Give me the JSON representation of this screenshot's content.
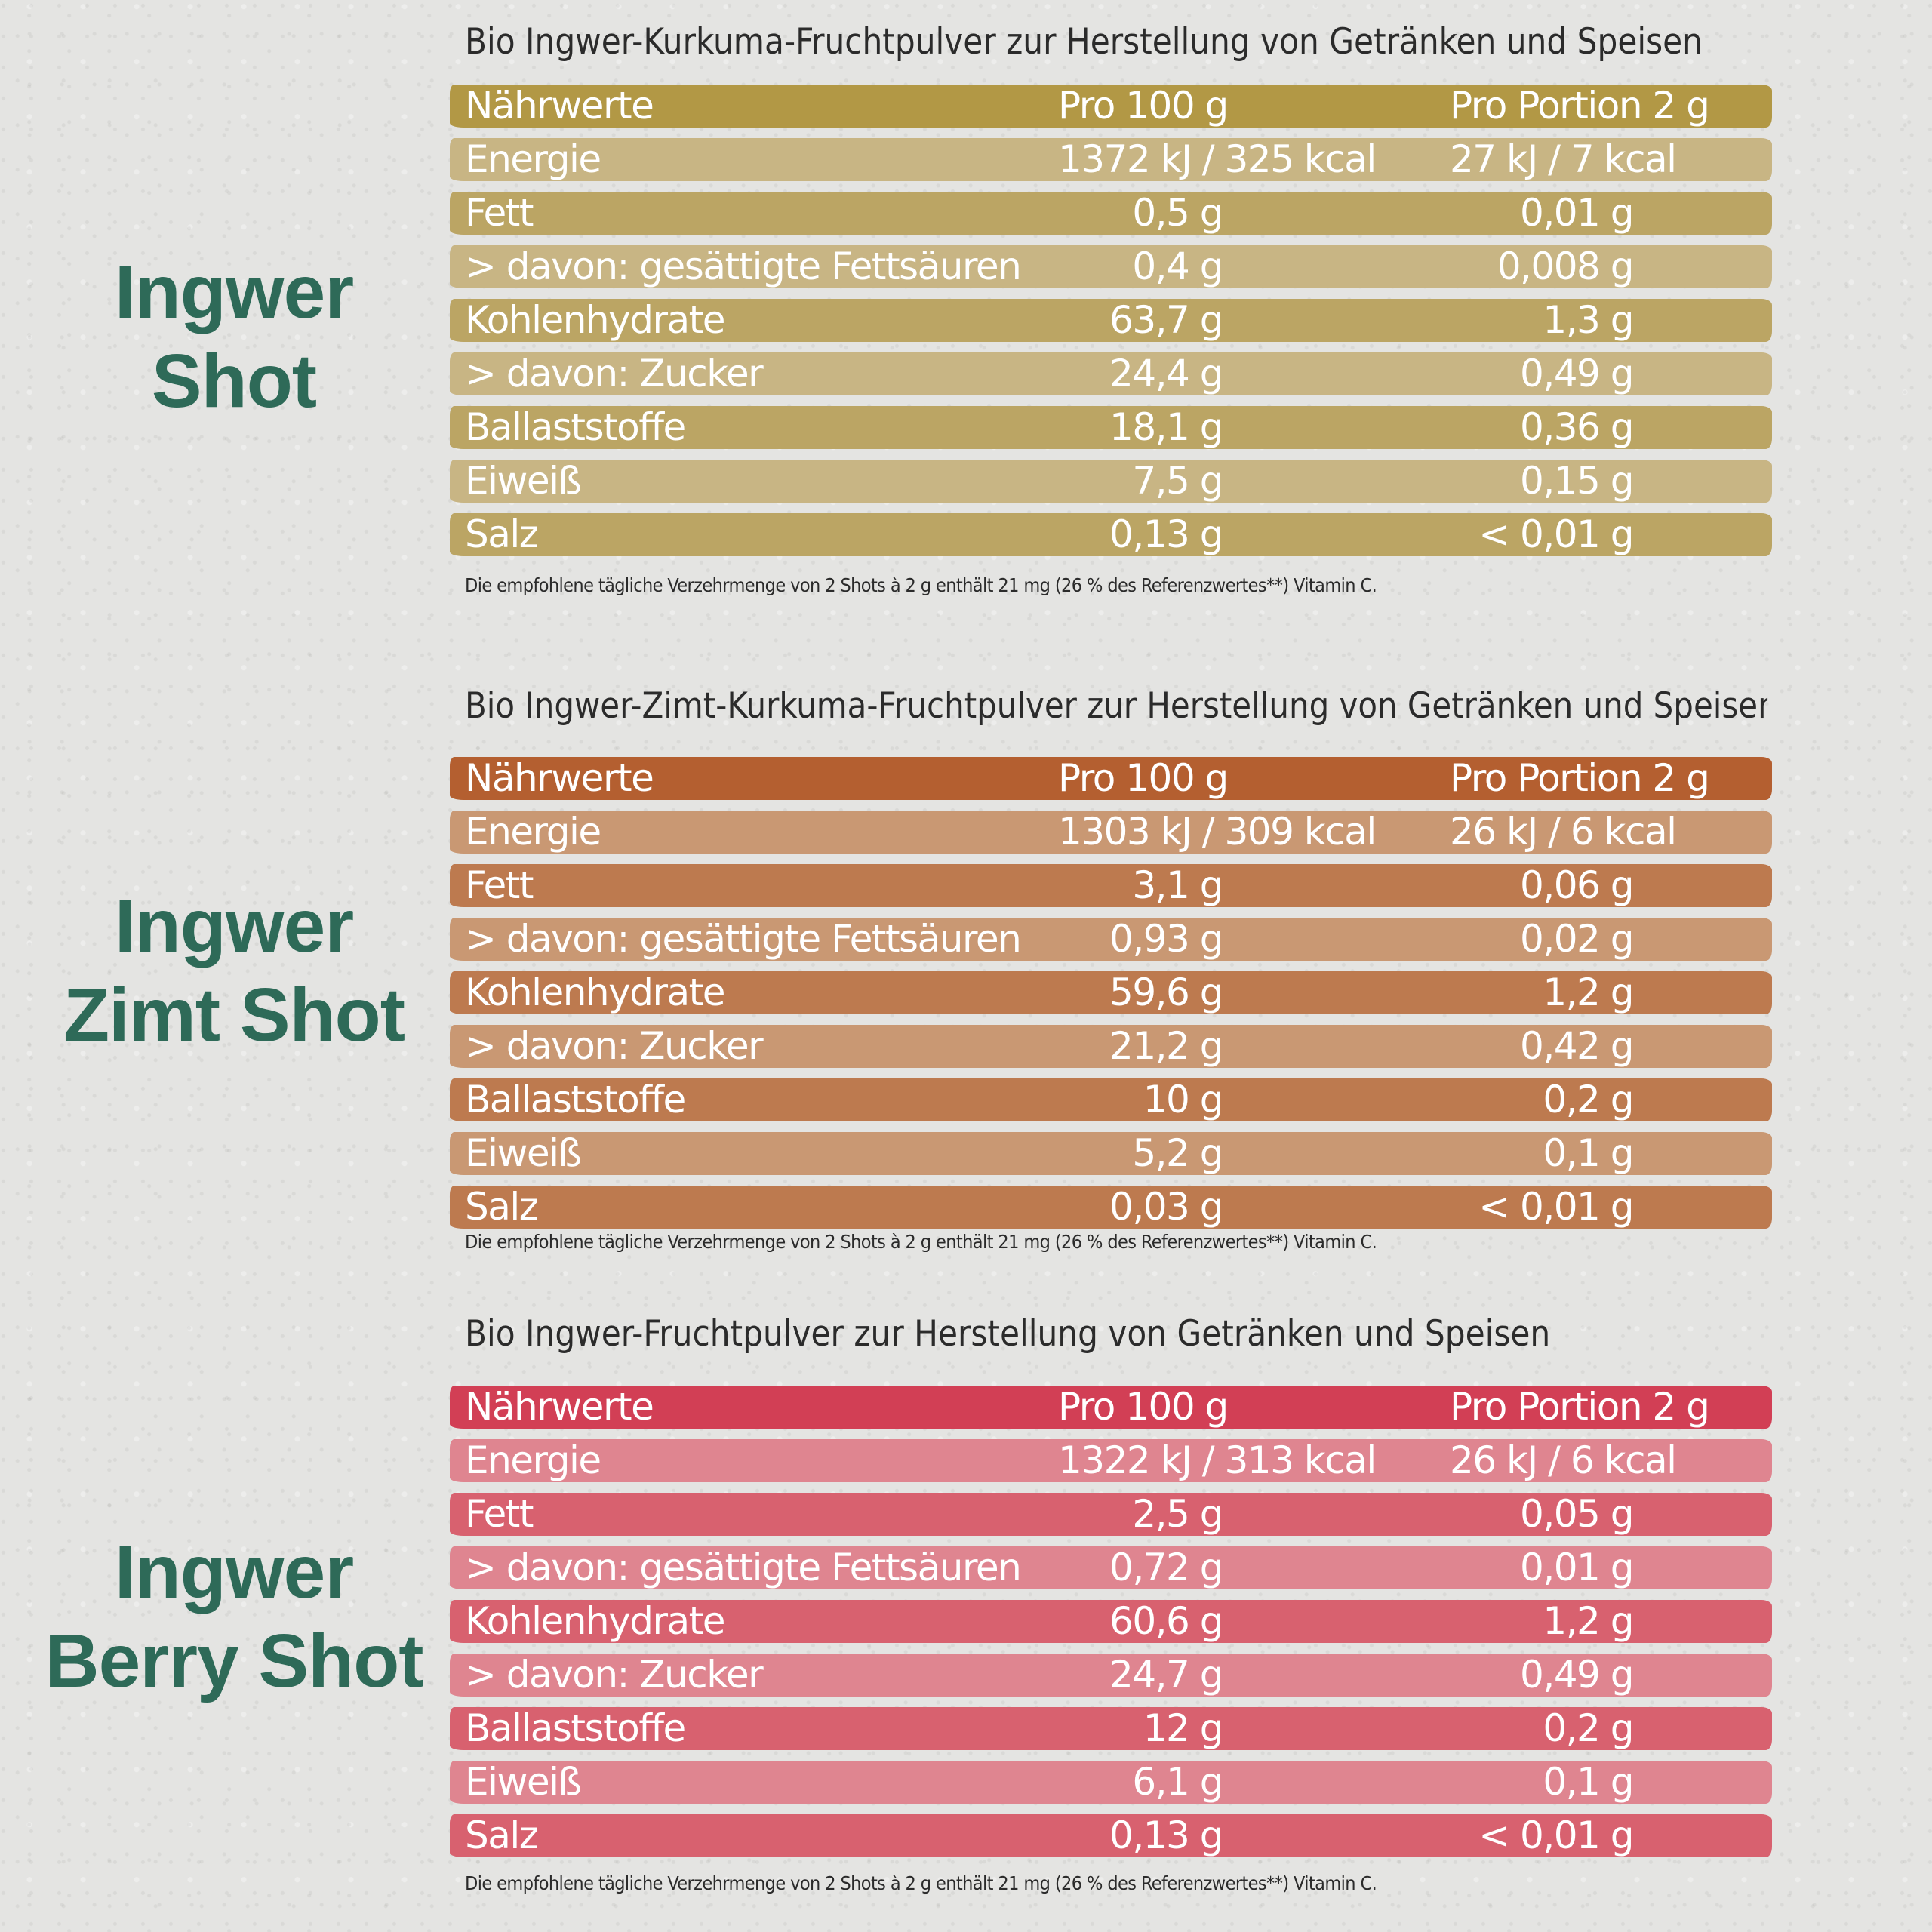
{
  "products": [
    {
      "name_lines": [
        "Ingwer",
        "Shot"
      ],
      "title": "Bio Ingwer-Kurkuma-Fruchtpulver zur Herstellung von Getränken und Speisen",
      "colors": {
        "header": "#b29845",
        "row_dark": "#bba564",
        "row_light": "#c8b584"
      },
      "header": {
        "name": "Nährwerte",
        "per100": "Pro 100 g",
        "portion": "Pro Portion 2 g"
      },
      "rows": [
        {
          "name": "Energie",
          "per100": "1372 kJ / 325 kcal",
          "portion": "27 kJ / 7 kcal"
        },
        {
          "name": "Fett",
          "per100": "0,5 g",
          "portion": "0,01 g"
        },
        {
          "name": "> davon: gesättigte Fettsäuren",
          "per100": "0,4 g",
          "portion": "0,008 g"
        },
        {
          "name": "Kohlenhydrate",
          "per100": "63,7 g",
          "portion": "1,3 g"
        },
        {
          "name": "> davon: Zucker",
          "per100": "24,4 g",
          "portion": "0,49 g"
        },
        {
          "name": "Ballaststoffe",
          "per100": "18,1 g",
          "portion": "0,36 g"
        },
        {
          "name": "Eiweiß",
          "per100": "7,5 g",
          "portion": "0,15 g"
        },
        {
          "name": "Salz",
          "per100": "0,13 g",
          "portion": "< 0,01 g"
        }
      ],
      "footnote": "Die empfohlene tägliche Verzehrmenge von 2 Shots à 2 g enthält 21 mg (26 % des Referenzwertes**) Vitamin C."
    },
    {
      "name_lines": [
        "Ingwer",
        "Zimt Shot"
      ],
      "title": "Bio Ingwer-Zimt-Kurkuma-Fruchtpulver zur Herstellung von Getränken und Speisen",
      "colors": {
        "header": "#b45f30",
        "row_dark": "#bd7a4f",
        "row_light": "#c99873"
      },
      "header": {
        "name": "Nährwerte",
        "per100": "Pro 100 g",
        "portion": "Pro Portion 2 g"
      },
      "rows": [
        {
          "name": "Energie",
          "per100": "1303 kJ / 309 kcal",
          "portion": "26 kJ / 6 kcal"
        },
        {
          "name": "Fett",
          "per100": "3,1 g",
          "portion": "0,06 g"
        },
        {
          "name": "> davon: gesättigte Fettsäuren",
          "per100": "0,93 g",
          "portion": "0,02 g"
        },
        {
          "name": "Kohlenhydrate",
          "per100": "59,6 g",
          "portion": "1,2 g"
        },
        {
          "name": "> davon: Zucker",
          "per100": "21,2 g",
          "portion": "0,42 g"
        },
        {
          "name": "Ballaststoffe",
          "per100": "10 g",
          "portion": "0,2 g"
        },
        {
          "name": "Eiweiß",
          "per100": "5,2 g",
          "portion": "0,1 g"
        },
        {
          "name": "Salz",
          "per100": "0,03 g",
          "portion": "< 0,01 g"
        }
      ],
      "footnote": "Die empfohlene tägliche Verzehrmenge von 2 Shots à 2 g enthält 21 mg (26 % des Referenzwertes**) Vitamin C."
    },
    {
      "name_lines": [
        "Ingwer",
        "Berry Shot"
      ],
      "title": "Bio Ingwer-Fruchtpulver zur Herstellung von Getränken und Speisen",
      "colors": {
        "header": "#d23f55",
        "row_dark": "#d8616f",
        "row_light": "#df8590"
      },
      "header": {
        "name": "Nährwerte",
        "per100": "Pro 100 g",
        "portion": "Pro Portion 2 g"
      },
      "rows": [
        {
          "name": "Energie",
          "per100": "1322 kJ / 313 kcal",
          "portion": "26 kJ / 6 kcal"
        },
        {
          "name": "Fett",
          "per100": "2,5 g",
          "portion": "0,05 g"
        },
        {
          "name": "> davon: gesättigte Fettsäuren",
          "per100": "0,72 g",
          "portion": "0,01 g"
        },
        {
          "name": "Kohlenhydrate",
          "per100": "60,6 g",
          "portion": "1,2 g"
        },
        {
          "name": "> davon: Zucker",
          "per100": "24,7 g",
          "portion": "0,49 g"
        },
        {
          "name": "Ballaststoffe",
          "per100": "12 g",
          "portion": "0,2 g"
        },
        {
          "name": "Eiweiß",
          "per100": "6,1 g",
          "portion": "0,1 g"
        },
        {
          "name": "Salz",
          "per100": "0,13 g",
          "portion": "< 0,01 g"
        }
      ],
      "footnote": "Die empfohlene tägliche Verzehrmenge von 2 Shots à 2 g enthält 21 mg (26 % des Referenzwertes**) Vitamin C."
    }
  ],
  "accent_color": "#2e6a58"
}
